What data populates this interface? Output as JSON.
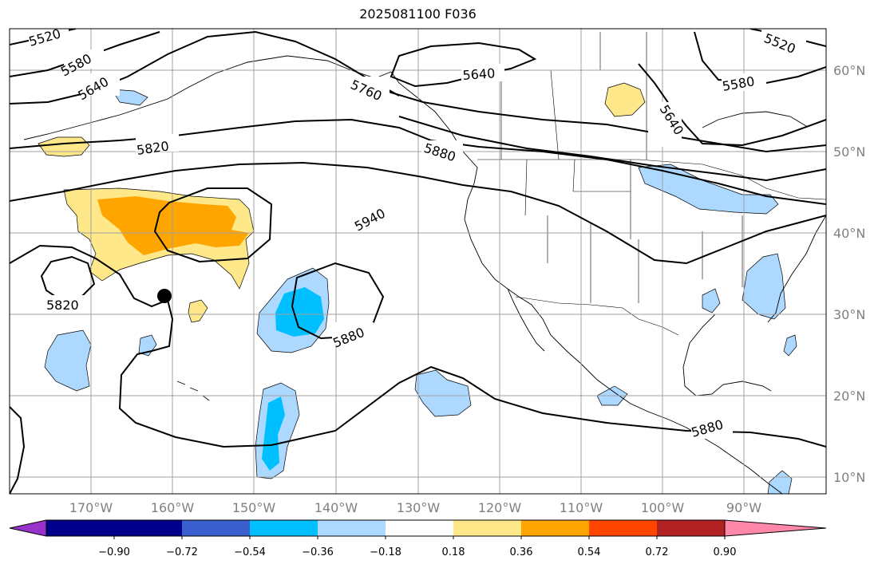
{
  "title": "2025081100 F036",
  "map": {
    "longitude_labels": [
      "170°W",
      "160°W",
      "150°W",
      "140°W",
      "130°W",
      "120°W",
      "110°W",
      "100°W",
      "90°W"
    ],
    "latitude_labels": [
      "60°N",
      "50°N",
      "40°N",
      "30°N",
      "20°N",
      "10°N"
    ],
    "contour_labels": [
      "5520",
      "5580",
      "5640",
      "5820",
      "5940",
      "5820",
      "5880",
      "5640",
      "5580",
      "5520",
      "5640",
      "5760",
      "5880",
      "5880"
    ],
    "storm_marker": "black-dot",
    "contour_color": "#000000",
    "grid_color": "#a0a0a0"
  },
  "colorbar": {
    "ticks": [
      "−0.90",
      "−0.72",
      "−0.54",
      "−0.36",
      "−0.18",
      "0.18",
      "0.36",
      "0.54",
      "0.72",
      "0.90"
    ],
    "colors": [
      "#9932cc",
      "#00008b",
      "#3a5fcd",
      "#00bfff",
      "#add8ff",
      "#ffffff",
      "#ffe88a",
      "#ffa500",
      "#ff4500",
      "#b22222",
      "#ff88aa"
    ]
  }
}
